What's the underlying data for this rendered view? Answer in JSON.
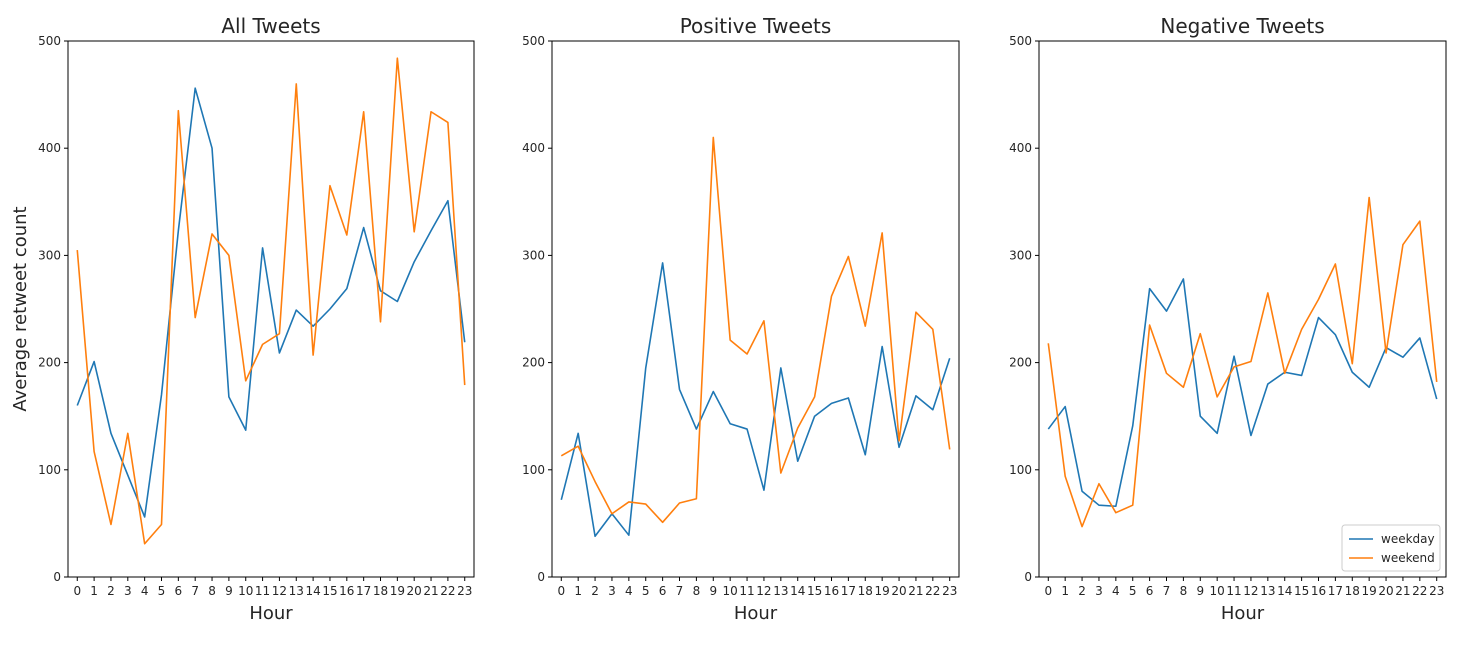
{
  "chart_data": [
    {
      "type": "line",
      "title": "All Tweets",
      "xlabel": "Hour",
      "ylabel": "Average retweet count",
      "x": [
        0,
        1,
        2,
        3,
        4,
        5,
        6,
        7,
        8,
        9,
        10,
        11,
        12,
        13,
        14,
        15,
        16,
        17,
        18,
        19,
        20,
        21,
        22,
        23
      ],
      "ylim": [
        0,
        500
      ],
      "yticks": [
        0,
        100,
        200,
        300,
        400,
        500
      ],
      "series": [
        {
          "name": "weekday",
          "color": "#1f77b4",
          "values": [
            160,
            201,
            134,
            95,
            56,
            170,
            323,
            456,
            400,
            168,
            137,
            307,
            209,
            249,
            234,
            250,
            269,
            326,
            267,
            257,
            294,
            323,
            351,
            219
          ]
        },
        {
          "name": "weekend",
          "color": "#ff7f0e",
          "values": [
            305,
            117,
            49,
            134,
            31,
            49,
            435,
            242,
            320,
            300,
            183,
            217,
            227,
            460,
            207,
            365,
            319,
            434,
            238,
            484,
            322,
            434,
            424,
            179
          ]
        }
      ],
      "legend": null
    },
    {
      "type": "line",
      "title": "Positive Tweets",
      "xlabel": "Hour",
      "ylabel": "",
      "x": [
        0,
        1,
        2,
        3,
        4,
        5,
        6,
        7,
        8,
        9,
        10,
        11,
        12,
        13,
        14,
        15,
        16,
        17,
        18,
        19,
        20,
        21,
        22,
        23
      ],
      "ylim": [
        0,
        500
      ],
      "yticks": [
        0,
        100,
        200,
        300,
        400,
        500
      ],
      "series": [
        {
          "name": "weekday",
          "color": "#1f77b4",
          "values": [
            72,
            134,
            38,
            59,
            39,
            195,
            293,
            175,
            138,
            173,
            143,
            138,
            81,
            195,
            108,
            150,
            162,
            167,
            114,
            215,
            121,
            169,
            156,
            204
          ]
        },
        {
          "name": "weekend",
          "color": "#ff7f0e",
          "values": [
            113,
            122,
            89,
            59,
            70,
            68,
            51,
            69,
            73,
            410,
            221,
            208,
            239,
            97,
            139,
            168,
            262,
            299,
            234,
            321,
            127,
            247,
            231,
            119
          ]
        }
      ],
      "legend": null
    },
    {
      "type": "line",
      "title": "Negative Tweets",
      "xlabel": "Hour",
      "ylabel": "",
      "x": [
        0,
        1,
        2,
        3,
        4,
        5,
        6,
        7,
        8,
        9,
        10,
        11,
        12,
        13,
        14,
        15,
        16,
        17,
        18,
        19,
        20,
        21,
        22,
        23
      ],
      "ylim": [
        0,
        500
      ],
      "yticks": [
        0,
        100,
        200,
        300,
        400,
        500
      ],
      "series": [
        {
          "name": "weekday",
          "color": "#1f77b4",
          "values": [
            138,
            159,
            80,
            67,
            66,
            141,
            269,
            248,
            278,
            150,
            134,
            206,
            132,
            180,
            191,
            188,
            242,
            226,
            191,
            177,
            214,
            205,
            223,
            166
          ]
        },
        {
          "name": "weekend",
          "color": "#ff7f0e",
          "values": [
            218,
            94,
            47,
            87,
            60,
            67,
            235,
            190,
            177,
            227,
            168,
            196,
            201,
            265,
            190,
            231,
            259,
            292,
            199,
            354,
            209,
            310,
            332,
            182
          ]
        }
      ],
      "legend": {
        "position": "lower right",
        "entries": [
          "weekday",
          "weekend"
        ]
      }
    }
  ]
}
